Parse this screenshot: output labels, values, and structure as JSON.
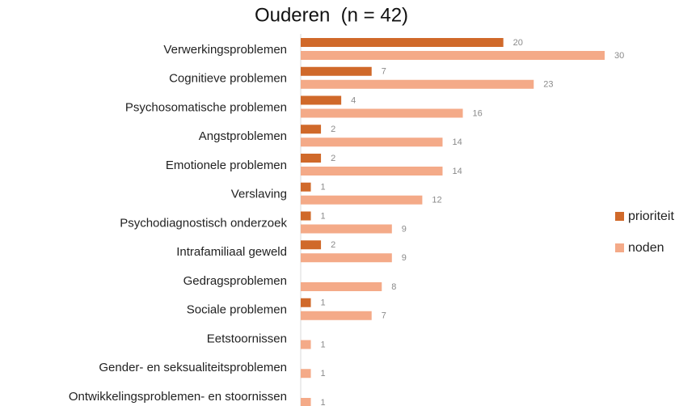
{
  "chart_data": {
    "type": "hbar",
    "title": "Ouderen  (n = 42)",
    "categories": [
      "Verwerkingsproblemen",
      "Cognitieve problemen",
      "Psychosomatische problemen",
      "Angstproblemen",
      "Emotionele problemen",
      "Verslaving",
      "Psychodiagnostisch onderzoek",
      "Intrafamiliaal geweld",
      "Gedragsproblemen",
      "Sociale problemen",
      "Eetstoornissen",
      "Gender- en seksualiteitsproblemen",
      "Ontwikkelingsproblemen- en stoornissen"
    ],
    "series": [
      {
        "name": "prioriteit",
        "color": "#d0692a",
        "values": [
          20,
          7,
          4,
          2,
          2,
          1,
          1,
          2,
          null,
          1,
          null,
          null,
          null
        ]
      },
      {
        "name": "noden",
        "color": "#f4aa88",
        "values": [
          30,
          23,
          16,
          14,
          14,
          12,
          9,
          9,
          8,
          7,
          1,
          1,
          1
        ]
      }
    ],
    "legend": "right"
  }
}
